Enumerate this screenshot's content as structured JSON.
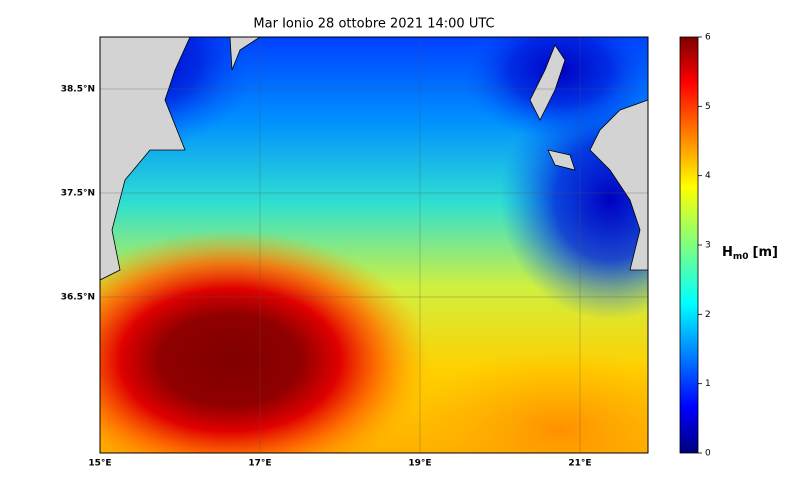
{
  "title": "Mar Ionio  28 ottobre 2021  14:00 UTC",
  "map": {
    "lon_range": [
      15,
      21.85
    ],
    "lat_range": [
      35,
      39
    ],
    "lon_ticks": [
      {
        "value": 15,
        "label": "15°E"
      },
      {
        "value": 17,
        "label": "17°E"
      },
      {
        "value": 19,
        "label": "19°E"
      },
      {
        "value": 21,
        "label": "21°E"
      }
    ],
    "lat_ticks": [
      {
        "value": 38.5,
        "label": "38.5°N"
      },
      {
        "value": 37.5,
        "label": "37.5°N"
      },
      {
        "value": 36.5,
        "label": "36.5°N"
      }
    ]
  },
  "colorbar": {
    "label": {
      "main": "H",
      "sub": "m0",
      "unit": "[m]"
    },
    "range": [
      0,
      6
    ],
    "ticks": [
      0,
      1,
      2,
      3,
      4,
      5,
      6
    ]
  }
}
